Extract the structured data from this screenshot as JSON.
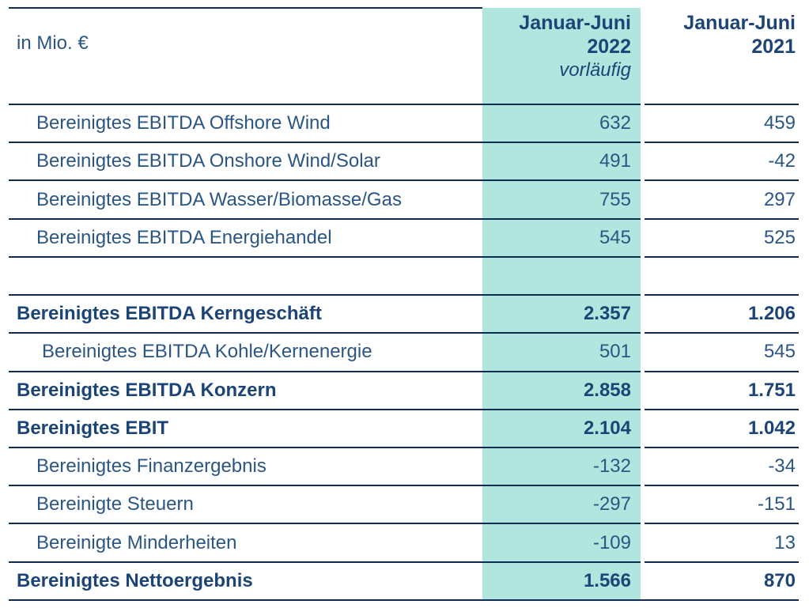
{
  "colors": {
    "highlight": "#b1e6de",
    "text": "#2b5684",
    "text_bold": "#1d4477",
    "line": "#0d2c50"
  },
  "table": {
    "unit_label": "in Mio. €",
    "header": {
      "col2022": {
        "line1": "Januar-Juni",
        "line2": "2022",
        "note": "vorläufig"
      },
      "col2021": {
        "line1": "Januar-Juni",
        "line2": "2021"
      }
    },
    "rows": [
      {
        "label": "Bereinigtes EBITDA Offshore Wind",
        "value_2022": "632",
        "value_2021": "459",
        "style": "normal"
      },
      {
        "label": "Bereinigtes EBITDA Onshore Wind/Solar",
        "value_2022": "491",
        "value_2021": "-42",
        "style": "normal"
      },
      {
        "label": "Bereinigtes EBITDA Wasser/Biomasse/Gas",
        "value_2022": "755",
        "value_2021": "297",
        "style": "normal"
      },
      {
        "label": "Bereinigtes EBITDA Energiehandel",
        "value_2022": "545",
        "value_2021": "525",
        "style": "normal"
      },
      {
        "label": "",
        "value_2022": "",
        "value_2021": "",
        "style": "empty"
      },
      {
        "label": "Bereinigtes EBITDA Kerngeschäft",
        "value_2022": "2.357",
        "value_2021": "1.206",
        "style": "bold"
      },
      {
        "label": "Bereinigtes EBITDA Kohle/Kernenergie",
        "value_2022": "501",
        "value_2021": "545",
        "style": "indent2"
      },
      {
        "label": "Bereinigtes EBITDA Konzern",
        "value_2022": "2.858",
        "value_2021": "1.751",
        "style": "bold"
      },
      {
        "label": "Bereinigtes EBIT",
        "value_2022": "2.104",
        "value_2021": "1.042",
        "style": "bold"
      },
      {
        "label": "Bereinigtes Finanzergebnis",
        "value_2022": "-132",
        "value_2021": "-34",
        "style": "normal"
      },
      {
        "label": "Bereinigte Steuern",
        "value_2022": "-297",
        "value_2021": "-151",
        "style": "normal"
      },
      {
        "label": "Bereinigte Minderheiten",
        "value_2022": "-109",
        "value_2021": "13",
        "style": "normal"
      },
      {
        "label": "Bereinigtes Nettoergebnis",
        "value_2022": "1.566",
        "value_2021": "870",
        "style": "bold"
      }
    ]
  }
}
